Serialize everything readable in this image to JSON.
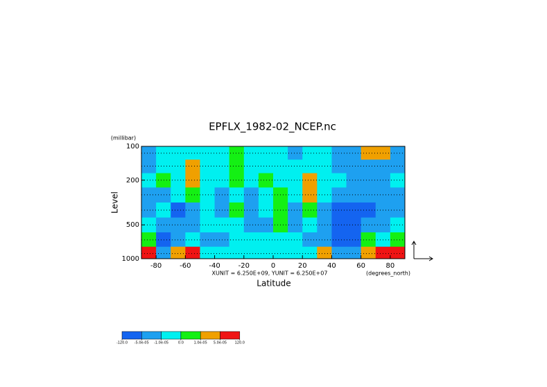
{
  "chart_data": {
    "type": "contour",
    "title": "EPFLX_1982-02_NCEP.nc",
    "y_unit_label": "(millibar)",
    "y_label": "Level",
    "x_label": "Latitude",
    "x_unit_label": "(degrees_north)",
    "annotation": "XUNIT = 6.250E+09, YUNIT = 6.250E+07",
    "xlim": [
      -90,
      90
    ],
    "xticks": [
      -80,
      -60,
      -40,
      -20,
      0,
      20,
      40,
      60,
      80
    ],
    "ylim": [
      1000,
      100
    ],
    "yticks": [
      100,
      200,
      500,
      1000
    ],
    "log_scale": true,
    "grid": true,
    "x": [
      -85,
      -75,
      -65,
      -55,
      -45,
      -35,
      -25,
      -15,
      -5,
      5,
      15,
      25,
      35,
      45,
      55,
      65,
      75,
      85
    ],
    "y": [
      115,
      150,
      200,
      270,
      370,
      500,
      680,
      900
    ],
    "z": [
      [
        -3e-05,
        -5e-06,
        -5e-06,
        -5e-06,
        -5e-06,
        -5e-06,
        5e-06,
        -5e-06,
        -5e-06,
        -5e-06,
        -3e-05,
        -5e-06,
        -5e-06,
        -3e-05,
        -3e-05,
        3e-05,
        3e-05,
        -3e-05
      ],
      [
        -3e-05,
        -5e-06,
        -5e-06,
        3e-05,
        -5e-06,
        -5e-06,
        5e-06,
        -5e-06,
        -5e-06,
        -5e-06,
        -5e-06,
        -5e-06,
        -5e-06,
        -3e-05,
        -3e-05,
        -3e-05,
        -3e-05,
        -3e-05
      ],
      [
        -5e-06,
        5e-06,
        -5e-06,
        3e-05,
        -5e-06,
        -5e-06,
        5e-06,
        -5e-06,
        5e-06,
        -5e-06,
        -5e-06,
        3e-05,
        -5e-06,
        -5e-06,
        -3e-05,
        -3e-05,
        -3e-05,
        -5e-06
      ],
      [
        -3e-05,
        -3e-05,
        -5e-06,
        5e-06,
        -5e-06,
        -3e-05,
        -5e-06,
        -3e-05,
        -5e-06,
        5e-06,
        -5e-06,
        3e-05,
        -5e-06,
        -3e-05,
        -3e-05,
        -3e-05,
        -3e-05,
        -3e-05
      ],
      [
        -3e-05,
        -5e-06,
        -8e-05,
        -3e-05,
        -5e-06,
        -3e-05,
        5e-06,
        -3e-05,
        -5e-06,
        5e-06,
        -3e-05,
        5e-06,
        -3e-05,
        -8e-05,
        -8e-05,
        -8e-05,
        -3e-05,
        -3e-05
      ],
      [
        -5e-06,
        -3e-05,
        -3e-05,
        -3e-05,
        -5e-06,
        -5e-06,
        -5e-06,
        -3e-05,
        -3e-05,
        5e-06,
        -3e-05,
        -5e-06,
        -3e-05,
        -8e-05,
        -8e-05,
        -3e-05,
        -3e-05,
        -5e-06
      ],
      [
        5e-06,
        -8e-05,
        -3e-05,
        -5e-06,
        -3e-05,
        -3e-05,
        -5e-06,
        -5e-06,
        -5e-06,
        -5e-06,
        -5e-06,
        -3e-05,
        -3e-05,
        -8e-05,
        -8e-05,
        5e-06,
        -5e-06,
        5e-06
      ],
      [
        8e-05,
        -3e-05,
        3e-05,
        8e-05,
        -5e-06,
        -5e-06,
        -5e-06,
        -5e-06,
        -5e-06,
        -5e-06,
        -5e-06,
        -5e-06,
        3e-05,
        -3e-05,
        -3e-05,
        3e-05,
        8e-05,
        8e-05
      ]
    ],
    "levels": [
      {
        "value": -120,
        "label": "-120.0"
      },
      {
        "value": -5e-05,
        "label": "-5.0e-05"
      },
      {
        "value": -1e-05,
        "label": "-1.0e-05"
      },
      {
        "value": 0,
        "label": "0.0"
      },
      {
        "value": 1e-05,
        "label": "1.0e-05"
      },
      {
        "value": 5e-05,
        "label": "5.0e-05"
      },
      {
        "value": 120,
        "label": "120.0"
      }
    ],
    "colors": [
      "#1464f0",
      "#1ea0f0",
      "#00f0f0",
      "#14f014",
      "#f0a000",
      "#f01414"
    ]
  }
}
